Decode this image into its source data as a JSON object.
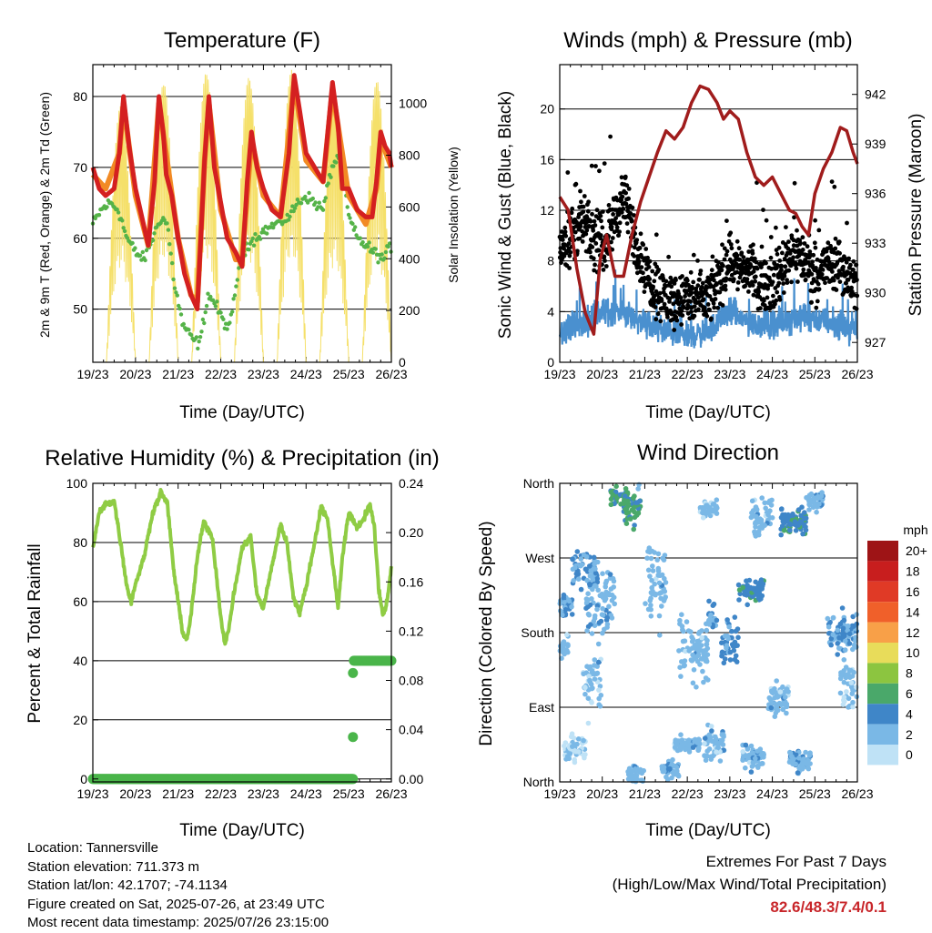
{
  "chart_data": [
    {
      "type": "line",
      "title": "Temperature (F)",
      "xlabel": "Time (Day/UTC)",
      "ylabel": "2m & 9m T (Red, Orange) & 2m Td (Green)",
      "y2label": "Solar Insolation (Yellow)",
      "categories": [
        "19/23",
        "20/23",
        "21/23",
        "22/23",
        "23/23",
        "24/23",
        "25/23",
        "26/23"
      ],
      "ylim": [
        42.5,
        84.5
      ],
      "yticks": [
        50,
        60,
        70,
        80
      ],
      "y2lim": [
        0,
        1150
      ],
      "y2ticks": [
        0,
        200,
        400,
        600,
        800,
        1000
      ],
      "grid_y": [
        50,
        60,
        70,
        80
      ],
      "series": [
        {
          "color": "#d42020",
          "x": [
            0,
            0.15,
            0.3,
            0.5,
            0.62,
            0.72,
            0.85,
            1.0,
            1.15,
            1.3,
            1.45,
            1.55,
            1.65,
            1.72,
            1.85,
            2.0,
            2.15,
            2.3,
            2.45,
            2.62,
            2.72,
            2.85,
            3.0,
            3.15,
            3.35,
            3.5,
            3.62,
            3.72,
            3.85,
            4.0,
            4.2,
            4.4,
            4.6,
            4.72,
            4.85,
            5.0,
            5.2,
            5.4,
            5.62,
            5.75,
            5.85,
            6.0,
            6.2,
            6.4,
            6.55,
            6.65,
            6.75,
            6.85,
            6.95,
            7.0
          ],
          "y": [
            70,
            67,
            66,
            67,
            72,
            80,
            73,
            67,
            63,
            59,
            68,
            80,
            75,
            69,
            66,
            60,
            55,
            52,
            50,
            71,
            80,
            70,
            65,
            60,
            58,
            56,
            68,
            75,
            70,
            67,
            64,
            63,
            72,
            83,
            78,
            72,
            70,
            68,
            82,
            76,
            67,
            67,
            64,
            63,
            63,
            68,
            75,
            73,
            72,
            70
          ]
        },
        {
          "color": "#f28a24",
          "x": [
            0,
            0.3,
            0.62,
            0.72,
            1.0,
            1.3,
            1.55,
            2.0,
            2.3,
            2.45,
            2.62,
            2.72,
            3.0,
            3.35,
            3.5,
            3.72,
            4.0,
            4.4,
            4.72,
            5.0,
            5.4,
            5.62,
            6.0,
            6.4,
            6.65,
            6.75,
            7.0
          ],
          "y": [
            69,
            67,
            72,
            79,
            66,
            59,
            79,
            60,
            52,
            51,
            71,
            79,
            64,
            57,
            57,
            74,
            66,
            63,
            82,
            71,
            68,
            81,
            66,
            62,
            67,
            74,
            70
          ]
        },
        {
          "color": "#55b348",
          "x": [
            0,
            0.2,
            0.4,
            0.6,
            0.8,
            1.0,
            1.2,
            1.4,
            1.6,
            1.75,
            1.9,
            2.1,
            2.3,
            2.5,
            2.7,
            2.85,
            3.0,
            3.2,
            3.4,
            3.6,
            3.8,
            4.0,
            4.3,
            4.6,
            4.8,
            5.0,
            5.2,
            5.4,
            5.6,
            5.8,
            6.0,
            6.2,
            6.4,
            6.6,
            6.8,
            7.0
          ],
          "y": [
            62,
            64,
            65,
            64,
            60,
            58,
            57,
            60,
            63,
            62,
            54,
            48,
            46,
            45,
            52,
            51,
            49,
            47,
            55,
            59,
            60,
            61,
            62,
            63,
            65,
            66,
            65,
            64,
            70,
            72,
            63,
            60,
            59,
            58,
            57,
            59
          ]
        },
        {
          "color": "#f5e06a",
          "axis": "y2",
          "days": [
            0,
            1,
            2,
            3,
            4,
            5,
            6
          ],
          "peak": [
            1000,
            1080,
            1120,
            1100,
            1130,
            1050,
            1090
          ]
        }
      ]
    },
    {
      "type": "scatter",
      "title": "Winds (mph) & Pressure (mb)",
      "xlabel": "Time (Day/UTC)",
      "ylabel": "Sonic Wind & Gust (Blue, Black)",
      "y2label": "Station Pressure (Maroon)",
      "categories": [
        "19/23",
        "20/23",
        "21/23",
        "22/23",
        "23/23",
        "24/23",
        "25/23",
        "26/23"
      ],
      "ylim": [
        0,
        23.5
      ],
      "yticks": [
        0,
        4,
        8,
        12,
        16,
        20
      ],
      "y2lim": [
        925.8,
        943.8
      ],
      "y2ticks": [
        927,
        930,
        933,
        936,
        939,
        942
      ],
      "grid_y": [
        4,
        8,
        12,
        16,
        20
      ],
      "series": [
        {
          "color": "#000000",
          "kind": "gust-dots"
        },
        {
          "color": "#4a90cf",
          "kind": "wind-band"
        },
        {
          "color": "#a01c1c",
          "axis": "y2",
          "x": [
            0,
            0.2,
            0.4,
            0.6,
            0.8,
            0.95,
            1.1,
            1.3,
            1.5,
            1.7,
            1.9,
            2.1,
            2.3,
            2.5,
            2.7,
            2.9,
            3.1,
            3.3,
            3.5,
            3.7,
            3.85,
            4.0,
            4.2,
            4.4,
            4.6,
            4.8,
            5.0,
            5.2,
            5.4,
            5.55,
            5.7,
            5.85,
            6.0,
            6.2,
            6.4,
            6.6,
            6.75,
            6.9,
            7.0
          ],
          "y": [
            935.8,
            935.0,
            931.5,
            928.8,
            927.5,
            932.0,
            933.5,
            931.0,
            931.0,
            933.5,
            935.5,
            937.0,
            938.5,
            939.8,
            939.3,
            940.0,
            941.5,
            942.5,
            942.3,
            941.5,
            940.5,
            941.0,
            940.5,
            938.5,
            937.0,
            936.5,
            937.0,
            936.0,
            935.0,
            934.8,
            934.0,
            933.5,
            936.0,
            937.5,
            938.5,
            940.0,
            939.8,
            938.5,
            937.8
          ]
        }
      ]
    },
    {
      "type": "line",
      "title": "Relative Humidity (%) & Precipitation (in)",
      "xlabel": "Time (Day/UTC)",
      "ylabel": "Percent & Total Rainfall",
      "categories": [
        "19/23",
        "20/23",
        "21/23",
        "22/23",
        "23/23",
        "24/23",
        "25/23",
        "26/23"
      ],
      "ylim": [
        -1,
        100
      ],
      "yticks": [
        0,
        20,
        40,
        60,
        80,
        100
      ],
      "y2lim": [
        -0.0024,
        0.24
      ],
      "y2ticks": [
        "0.00",
        "0.04",
        "0.08",
        "0.12",
        "0.16",
        "0.20",
        "0.24"
      ],
      "grid_y": [
        0,
        20,
        40,
        60,
        80
      ],
      "series": [
        {
          "color": "#8fcc44",
          "x": [
            0,
            0.15,
            0.3,
            0.5,
            0.65,
            0.8,
            0.9,
            1.0,
            1.2,
            1.4,
            1.6,
            1.75,
            1.9,
            2.0,
            2.1,
            2.2,
            2.3,
            2.45,
            2.6,
            2.8,
            3.0,
            3.1,
            3.2,
            3.3,
            3.5,
            3.7,
            3.85,
            4.0,
            4.2,
            4.4,
            4.55,
            4.7,
            4.85,
            5.0,
            5.2,
            5.35,
            5.5,
            5.65,
            5.75,
            5.85,
            6.0,
            6.2,
            6.35,
            6.5,
            6.6,
            6.7,
            6.8,
            6.9,
            7.0
          ],
          "y": [
            78,
            90,
            93,
            94,
            80,
            65,
            60,
            66,
            75,
            90,
            97,
            93,
            70,
            60,
            50,
            47,
            55,
            75,
            87,
            82,
            55,
            45,
            52,
            62,
            78,
            82,
            62,
            58,
            72,
            86,
            80,
            62,
            56,
            65,
            80,
            92,
            88,
            70,
            58,
            75,
            90,
            85,
            88,
            93,
            85,
            65,
            55,
            60,
            72
          ]
        },
        {
          "color": "#4ab54a",
          "axis": "y2",
          "kind": "precip",
          "x": [
            0,
            6.1,
            6.101,
            6.105,
            6.11,
            6.15,
            7.0
          ],
          "y": [
            0,
            0,
            0.034,
            0.086,
            0.096,
            0.096,
            0.096
          ]
        }
      ]
    },
    {
      "type": "scatter",
      "title": "Wind Direction",
      "xlabel": "Time (Day/UTC)",
      "ylabel": "Direction (Colored By Speed)",
      "categories": [
        "19/23",
        "20/23",
        "21/23",
        "22/23",
        "23/23",
        "24/23",
        "25/23",
        "26/23"
      ],
      "ylim": [
        0,
        360
      ],
      "yticks": [
        "North",
        "East",
        "South",
        "West",
        "North"
      ],
      "grid_y": [
        90,
        180,
        270
      ],
      "legend": {
        "title": "mph",
        "labels": [
          "20+",
          "18",
          "16",
          "14",
          "12",
          "10",
          "8",
          "6",
          "4",
          "2",
          "0"
        ],
        "colors": [
          "#9e1416",
          "#c81e1e",
          "#e03a26",
          "#f0602a",
          "#f8a048",
          "#e8dc5a",
          "#8cc540",
          "#4aa86a",
          "#3f86c8",
          "#7ab8e6",
          "#bfe2f6"
        ]
      }
    }
  ],
  "info": {
    "location": "Location: Tannersville",
    "elevation": "Station elevation: 711.373 m",
    "latlon": "Station lat/lon: 42.1707; -74.1134",
    "created": "Figure created on Sat, 2025-07-26, at 23:49 UTC",
    "recent": "Most recent data timestamp: 2025/07/26 23:15:00"
  },
  "extremes": {
    "title": "Extremes For Past 7 Days",
    "subtitle": "(High/Low/Max Wind/Total Precipitation)",
    "values": "82.6/48.3/7.4/0.1"
  }
}
